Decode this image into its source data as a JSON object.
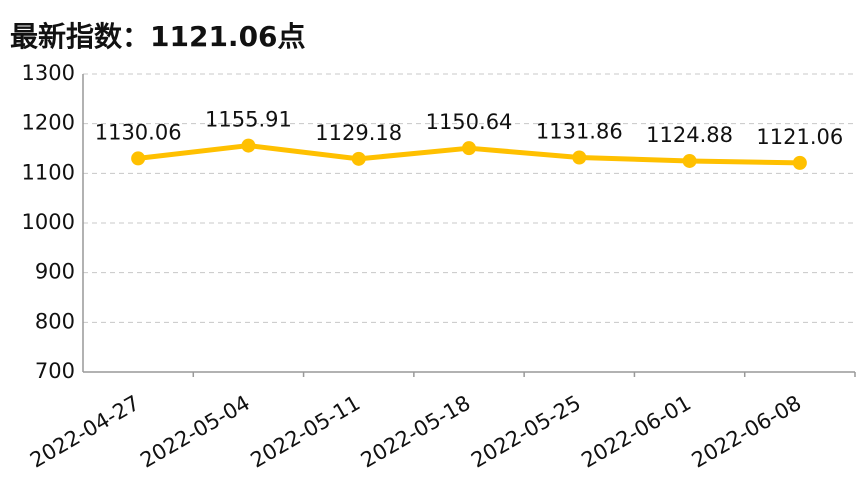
{
  "chart_data": {
    "type": "line",
    "title": "最新指数：1121.06点",
    "categories": [
      "2022-04-27",
      "2022-05-04",
      "2022-05-11",
      "2022-05-18",
      "2022-05-25",
      "2022-06-01",
      "2022-06-08"
    ],
    "values": [
      1130.06,
      1155.91,
      1129.18,
      1150.64,
      1131.86,
      1124.88,
      1121.06
    ],
    "color": "#ffc000",
    "ylim": [
      700,
      1300
    ],
    "yticks": [
      700,
      800,
      900,
      1000,
      1100,
      1200,
      1300
    ],
    "grid": true
  }
}
